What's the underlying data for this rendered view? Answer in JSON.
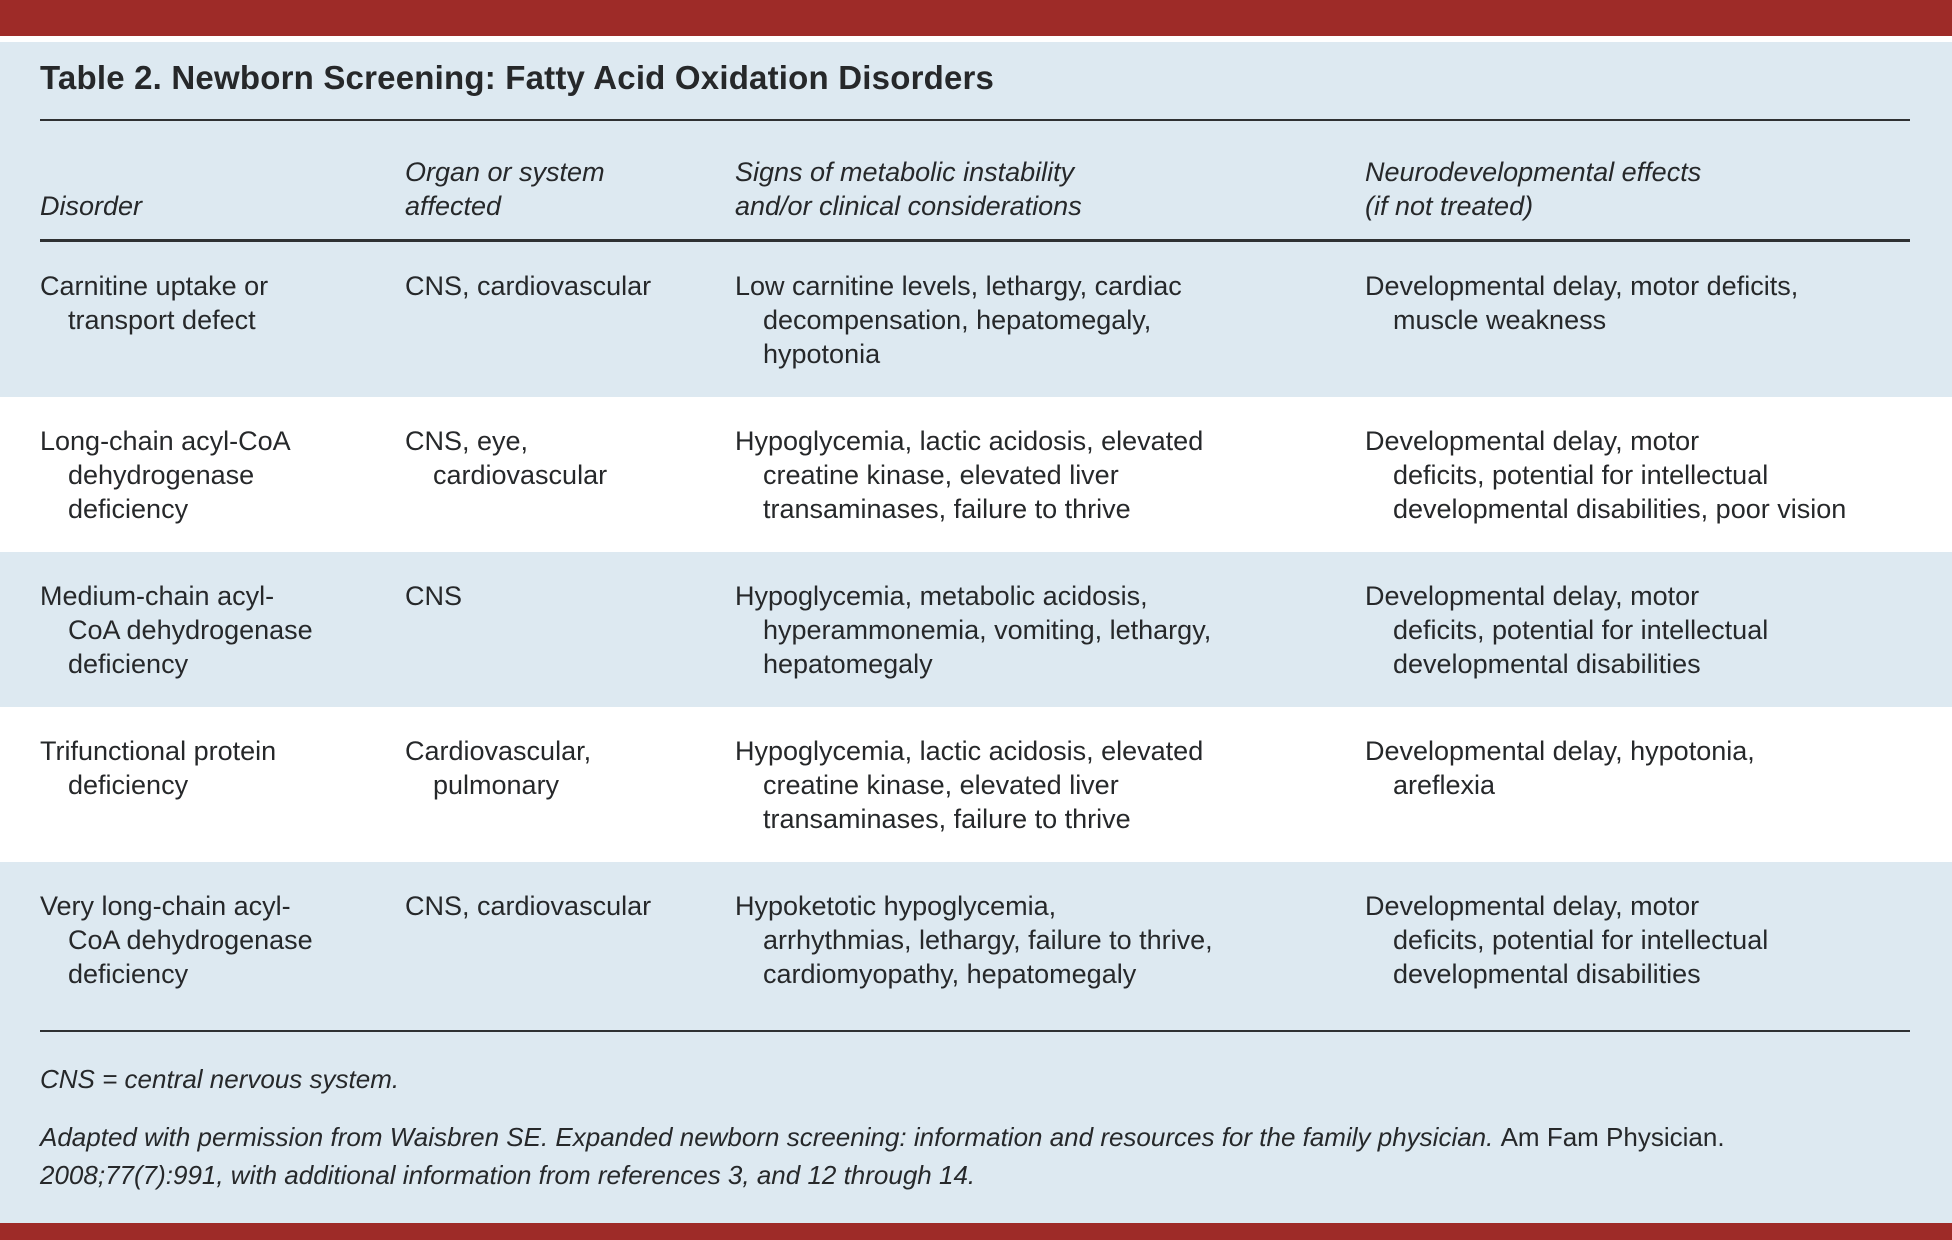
{
  "page": {
    "title": "Table 2. Newborn Screening: Fatty Acid Oxidation Disorders"
  },
  "table": {
    "columns": [
      {
        "label": "Disorder"
      },
      {
        "label": "Organ or system\naffected"
      },
      {
        "label": "Signs of metabolic instability\nand/or clinical considerations"
      },
      {
        "label": "Neurodevelopmental effects\n(if not treated)"
      }
    ],
    "rows": [
      {
        "disorder": "Carnitine uptake or\ntransport defect",
        "organ": "CNS, cardiovascular",
        "signs": "Low carnitine levels, lethargy, cardiac\ndecompensation, hepatomegaly,\nhypotonia",
        "neuro": "Developmental delay, motor deficits,\nmuscle weakness"
      },
      {
        "disorder": "Long-chain acyl-CoA\ndehydrogenase\ndeficiency",
        "organ": "CNS, eye,\ncardiovascular",
        "signs": "Hypoglycemia, lactic acidosis, elevated\ncreatine kinase, elevated liver\ntransaminases, failure to thrive",
        "neuro": "Developmental delay, motor\ndeficits, potential for intellectual\ndevelopmental disabilities, poor vision"
      },
      {
        "disorder": "Medium-chain acyl-\nCoA dehydrogenase\ndeficiency",
        "organ": "CNS",
        "signs": "Hypoglycemia, metabolic acidosis,\nhyperammonemia, vomiting, lethargy,\nhepatomegaly",
        "neuro": "Developmental delay, motor\ndeficits, potential for intellectual\ndevelopmental disabilities"
      },
      {
        "disorder": "Trifunctional protein\ndeficiency",
        "organ": "Cardiovascular,\npulmonary",
        "signs": "Hypoglycemia, lactic acidosis, elevated\ncreatine kinase, elevated liver\ntransaminases, failure to thrive",
        "neuro": "Developmental delay, hypotonia,\nareflexia"
      },
      {
        "disorder": "Very long-chain acyl-\nCoA dehydrogenase\ndeficiency",
        "organ": "CNS, cardiovascular",
        "signs": "Hypoketotic hypoglycemia,\narrhythmias, lethargy, failure to thrive,\ncardiomyopathy, hepatomegaly",
        "neuro": "Developmental delay, motor\ndeficits, potential for intellectual\ndevelopmental disabilities"
      }
    ]
  },
  "footnotes": {
    "abbreviation": "CNS = central nervous system.",
    "attribution": {
      "line1_italic": "Adapted with permission from Waisbren SE. Expanded newborn screening: information and resources for the family physician. ",
      "line1_roman": "Am Fam Physician.",
      "line2_italic": "2008;77(7):991, with additional information from references 3, and 12 through 14."
    }
  },
  "colors": {
    "accent_bar": "#9e2b28",
    "stripe_blue": "#dde9f1",
    "stripe_white": "#ffffff",
    "text": "#26282a",
    "rule": "#2f3133"
  }
}
